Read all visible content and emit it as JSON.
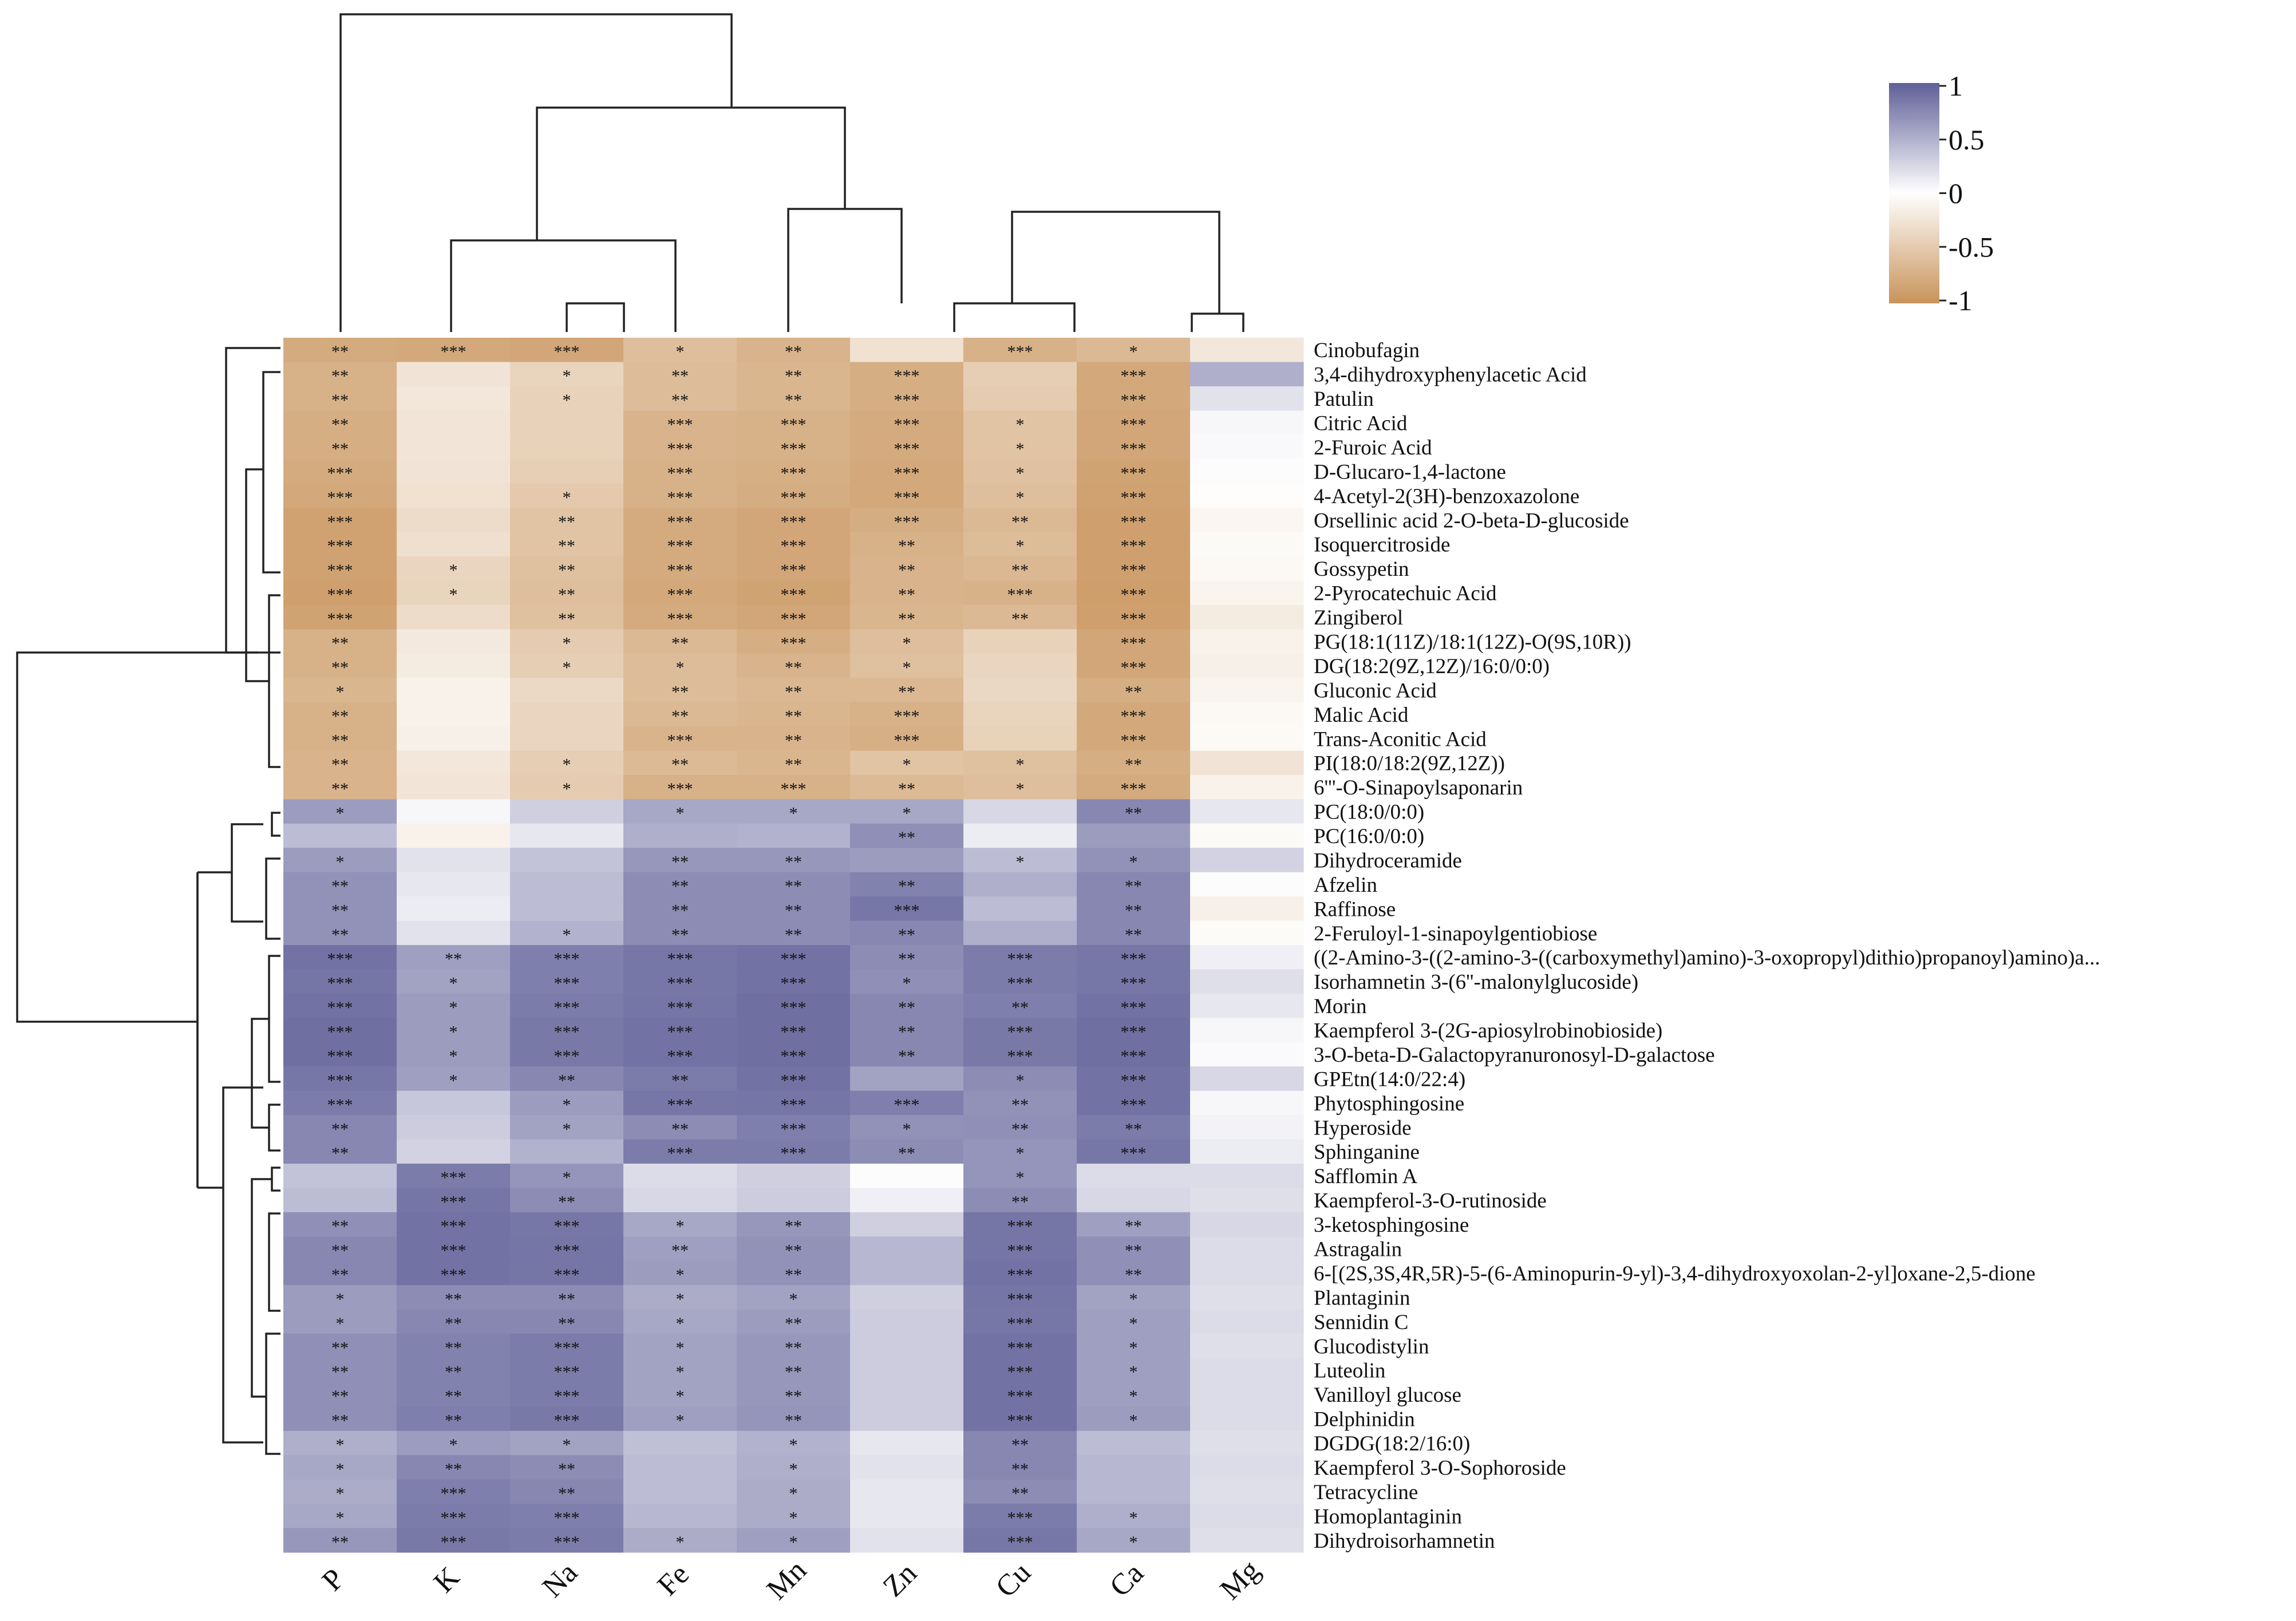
{
  "chart_data": {
    "type": "heatmap",
    "title": "",
    "columns": [
      "P",
      "K",
      "Na",
      "Fe",
      "Mn",
      "Zn",
      "Cu",
      "Ca",
      "Mg"
    ],
    "rows": [
      "Cinobufagin",
      "3,4-dihydroxyphenylacetic Acid",
      "Patulin",
      "Citric Acid",
      "2-Furoic Acid",
      "D-Glucaro-1,4-lactone",
      "4-Acetyl-2(3H)-benzoxazolone",
      "Orsellinic acid 2-O-beta-D-glucoside",
      "Isoquercitroside",
      "Gossypetin",
      "2-Pyrocatechuic Acid",
      "Zingiberol",
      "PG(18:1(11Z)/18:1(12Z)-O(9S,10R))",
      "DG(18:2(9Z,12Z)/16:0/0:0)",
      "Gluconic Acid",
      "Malic Acid",
      "Trans-Aconitic Acid",
      "PI(18:0/18:2(9Z,12Z))",
      "6'''-O-Sinapoylsaponarin",
      "PC(18:0/0:0)",
      "PC(16:0/0:0)",
      "Dihydroceramide",
      "Afzelin",
      "Raffinose",
      "2-Feruloyl-1-sinapoylgentiobiose",
      "((2-Amino-3-((2-amino-3-((carboxymethyl)amino)-3-oxopropyl)dithio)propanoyl)amino)a...",
      "Isorhamnetin 3-(6''-malonylglucoside)",
      "Morin",
      "Kaempferol 3-(2G-apiosylrobinobioside)",
      "3-O-beta-D-Galactopyranuronosyl-D-galactose",
      "GPEtn(14:0/22:4)",
      "Phytosphingosine",
      "Hyperoside",
      "Sphinganine",
      "Safflomin A",
      "Kaempferol-3-O-rutinoside",
      "3-ketosphingosine",
      "Astragalin",
      "6-[(2S,3S,4R,5R)-5-(6-Aminopurin-9-yl)-3,4-dihydroxyoxolan-2-yl]oxane-2,5-dione",
      "Plantaginin",
      "Sennidin C",
      "Glucodistylin",
      "Luteolin",
      "Vanilloyl glucose",
      "Delphinidin",
      "DGDG(18:2/16:0)",
      "Kaempferol 3-O-Sophoroside",
      "Tetracycline",
      "Homoplantaginin",
      "Dihydroisorhamnetin"
    ],
    "values": [
      [
        -0.78,
        -0.8,
        -0.82,
        -0.6,
        -0.7,
        -0.28,
        -0.72,
        -0.65,
        -0.22
      ],
      [
        -0.72,
        -0.25,
        -0.4,
        -0.62,
        -0.68,
        -0.75,
        -0.45,
        -0.8,
        0.5
      ],
      [
        -0.72,
        -0.22,
        -0.42,
        -0.62,
        -0.68,
        -0.75,
        -0.48,
        -0.8,
        0.18
      ],
      [
        -0.75,
        -0.24,
        -0.42,
        -0.7,
        -0.72,
        -0.78,
        -0.55,
        -0.82,
        0.05
      ],
      [
        -0.75,
        -0.24,
        -0.42,
        -0.7,
        -0.72,
        -0.78,
        -0.55,
        -0.82,
        0.04
      ],
      [
        -0.78,
        -0.25,
        -0.44,
        -0.72,
        -0.74,
        -0.8,
        -0.57,
        -0.85,
        0.02
      ],
      [
        -0.8,
        -0.28,
        -0.5,
        -0.72,
        -0.76,
        -0.8,
        -0.6,
        -0.86,
        -0.02
      ],
      [
        -0.86,
        -0.32,
        -0.55,
        -0.78,
        -0.82,
        -0.76,
        -0.65,
        -0.88,
        -0.08
      ],
      [
        -0.86,
        -0.3,
        -0.55,
        -0.78,
        -0.82,
        -0.72,
        -0.62,
        -0.88,
        -0.05
      ],
      [
        -0.86,
        -0.38,
        -0.58,
        -0.78,
        -0.82,
        -0.7,
        -0.66,
        -0.88,
        -0.06
      ],
      [
        -0.88,
        -0.4,
        -0.6,
        -0.8,
        -0.85,
        -0.7,
        -0.72,
        -0.9,
        -0.1
      ],
      [
        -0.85,
        -0.32,
        -0.58,
        -0.78,
        -0.82,
        -0.68,
        -0.65,
        -0.88,
        -0.18
      ],
      [
        -0.72,
        -0.2,
        -0.48,
        -0.65,
        -0.75,
        -0.6,
        -0.42,
        -0.82,
        -0.12
      ],
      [
        -0.72,
        -0.18,
        -0.45,
        -0.62,
        -0.7,
        -0.58,
        -0.38,
        -0.82,
        -0.14
      ],
      [
        -0.68,
        -0.12,
        -0.35,
        -0.62,
        -0.66,
        -0.66,
        -0.36,
        -0.75,
        -0.1
      ],
      [
        -0.72,
        -0.12,
        -0.38,
        -0.65,
        -0.68,
        -0.72,
        -0.4,
        -0.8,
        -0.06
      ],
      [
        -0.72,
        -0.14,
        -0.38,
        -0.7,
        -0.7,
        -0.74,
        -0.42,
        -0.8,
        -0.05
      ],
      [
        -0.7,
        -0.22,
        -0.45,
        -0.64,
        -0.68,
        -0.55,
        -0.58,
        -0.75,
        -0.25
      ],
      [
        -0.7,
        -0.24,
        -0.48,
        -0.72,
        -0.72,
        -0.64,
        -0.6,
        -0.78,
        -0.12
      ],
      [
        0.62,
        0.05,
        0.3,
        0.55,
        0.55,
        0.55,
        0.25,
        0.75,
        0.15
      ],
      [
        0.42,
        -0.12,
        0.15,
        0.5,
        0.48,
        0.7,
        0.12,
        0.62,
        -0.05
      ],
      [
        0.62,
        0.18,
        0.38,
        0.65,
        0.65,
        0.62,
        0.42,
        0.68,
        0.28
      ],
      [
        0.68,
        0.15,
        0.42,
        0.72,
        0.72,
        0.78,
        0.5,
        0.75,
        0.02
      ],
      [
        0.68,
        0.12,
        0.42,
        0.72,
        0.72,
        0.85,
        0.42,
        0.75,
        -0.14
      ],
      [
        0.68,
        0.18,
        0.48,
        0.72,
        0.72,
        0.75,
        0.5,
        0.75,
        -0.04
      ],
      [
        0.88,
        0.6,
        0.8,
        0.85,
        0.88,
        0.72,
        0.82,
        0.85,
        0.1
      ],
      [
        0.86,
        0.58,
        0.8,
        0.85,
        0.88,
        0.7,
        0.82,
        0.85,
        0.2
      ],
      [
        0.88,
        0.62,
        0.82,
        0.86,
        0.9,
        0.75,
        0.8,
        0.88,
        0.15
      ],
      [
        0.9,
        0.62,
        0.84,
        0.88,
        0.9,
        0.75,
        0.84,
        0.9,
        0.05
      ],
      [
        0.9,
        0.62,
        0.84,
        0.88,
        0.9,
        0.75,
        0.84,
        0.9,
        0.03
      ],
      [
        0.85,
        0.6,
        0.75,
        0.82,
        0.88,
        0.58,
        0.72,
        0.88,
        0.25
      ],
      [
        0.82,
        0.35,
        0.62,
        0.85,
        0.86,
        0.8,
        0.68,
        0.88,
        0.05
      ],
      [
        0.75,
        0.32,
        0.58,
        0.72,
        0.8,
        0.68,
        0.7,
        0.82,
        0.08
      ],
      [
        0.75,
        0.28,
        0.48,
        0.82,
        0.82,
        0.72,
        0.66,
        0.85,
        0.12
      ],
      [
        0.38,
        0.82,
        0.66,
        0.22,
        0.3,
        0.02,
        0.66,
        0.22,
        0.22
      ],
      [
        0.42,
        0.86,
        0.72,
        0.25,
        0.32,
        0.1,
        0.72,
        0.25,
        0.2
      ],
      [
        0.7,
        0.88,
        0.85,
        0.55,
        0.65,
        0.3,
        0.86,
        0.6,
        0.25
      ],
      [
        0.75,
        0.88,
        0.86,
        0.6,
        0.68,
        0.45,
        0.86,
        0.7,
        0.22
      ],
      [
        0.75,
        0.88,
        0.86,
        0.62,
        0.68,
        0.45,
        0.88,
        0.7,
        0.22
      ],
      [
        0.62,
        0.72,
        0.72,
        0.52,
        0.58,
        0.3,
        0.86,
        0.58,
        0.2
      ],
      [
        0.62,
        0.75,
        0.75,
        0.55,
        0.62,
        0.32,
        0.85,
        0.6,
        0.22
      ],
      [
        0.7,
        0.78,
        0.82,
        0.58,
        0.65,
        0.32,
        0.88,
        0.6,
        0.2
      ],
      [
        0.7,
        0.78,
        0.82,
        0.58,
        0.65,
        0.32,
        0.88,
        0.6,
        0.22
      ],
      [
        0.7,
        0.78,
        0.82,
        0.58,
        0.65,
        0.32,
        0.88,
        0.6,
        0.22
      ],
      [
        0.7,
        0.8,
        0.84,
        0.6,
        0.66,
        0.32,
        0.88,
        0.62,
        0.22
      ],
      [
        0.5,
        0.62,
        0.58,
        0.4,
        0.48,
        0.15,
        0.75,
        0.42,
        0.2
      ],
      [
        0.55,
        0.75,
        0.72,
        0.42,
        0.5,
        0.18,
        0.75,
        0.45,
        0.22
      ],
      [
        0.52,
        0.8,
        0.75,
        0.42,
        0.52,
        0.15,
        0.72,
        0.45,
        0.2
      ],
      [
        0.55,
        0.82,
        0.8,
        0.45,
        0.52,
        0.15,
        0.82,
        0.5,
        0.22
      ],
      [
        0.65,
        0.84,
        0.82,
        0.52,
        0.6,
        0.18,
        0.85,
        0.55,
        0.2
      ]
    ],
    "significance": [
      [
        "**",
        "***",
        "***",
        "*",
        "**",
        "",
        "***",
        "*",
        ""
      ],
      [
        "**",
        "",
        "*",
        "**",
        "**",
        "***",
        "",
        "***",
        ""
      ],
      [
        "**",
        "",
        "*",
        "**",
        "**",
        "***",
        "",
        "***",
        ""
      ],
      [
        "**",
        "",
        "",
        "***",
        "***",
        "***",
        "*",
        "***",
        ""
      ],
      [
        "**",
        "",
        "",
        "***",
        "***",
        "***",
        "*",
        "***",
        ""
      ],
      [
        "***",
        "",
        "",
        "***",
        "***",
        "***",
        "*",
        "***",
        ""
      ],
      [
        "***",
        "",
        "*",
        "***",
        "***",
        "***",
        "*",
        "***",
        ""
      ],
      [
        "***",
        "",
        "**",
        "***",
        "***",
        "***",
        "**",
        "***",
        ""
      ],
      [
        "***",
        "",
        "**",
        "***",
        "***",
        "**",
        "*",
        "***",
        ""
      ],
      [
        "***",
        "*",
        "**",
        "***",
        "***",
        "**",
        "**",
        "***",
        ""
      ],
      [
        "***",
        "*",
        "**",
        "***",
        "***",
        "**",
        "***",
        "***",
        ""
      ],
      [
        "***",
        "",
        "**",
        "***",
        "***",
        "**",
        "**",
        "***",
        ""
      ],
      [
        "**",
        "",
        "*",
        "**",
        "***",
        "*",
        "",
        "***",
        ""
      ],
      [
        "**",
        "",
        "*",
        "*",
        "**",
        "*",
        "",
        "***",
        ""
      ],
      [
        "*",
        "",
        "",
        "**",
        "**",
        "**",
        "",
        "**",
        ""
      ],
      [
        "**",
        "",
        "",
        "**",
        "**",
        "***",
        "",
        "***",
        ""
      ],
      [
        "**",
        "",
        "",
        "***",
        "**",
        "***",
        "",
        "***",
        ""
      ],
      [
        "**",
        "",
        "*",
        "**",
        "**",
        "*",
        "*",
        "**",
        ""
      ],
      [
        "**",
        "",
        "*",
        "***",
        "***",
        "**",
        "*",
        "***",
        ""
      ],
      [
        "*",
        "",
        "",
        "*",
        "*",
        "*",
        "",
        "**",
        ""
      ],
      [
        "",
        "",
        "",
        "",
        "",
        "**",
        "",
        "",
        ""
      ],
      [
        "*",
        "",
        "",
        "**",
        "**",
        "",
        "*",
        "*",
        ""
      ],
      [
        "**",
        "",
        "",
        "**",
        "**",
        "**",
        "",
        "**",
        ""
      ],
      [
        "**",
        "",
        "",
        "**",
        "**",
        "***",
        "",
        "**",
        ""
      ],
      [
        "**",
        "",
        "*",
        "**",
        "**",
        "**",
        "",
        "**",
        ""
      ],
      [
        "***",
        "**",
        "***",
        "***",
        "***",
        "**",
        "***",
        "***",
        ""
      ],
      [
        "***",
        "*",
        "***",
        "***",
        "***",
        "*",
        "***",
        "***",
        ""
      ],
      [
        "***",
        "*",
        "***",
        "***",
        "***",
        "**",
        "**",
        "***",
        ""
      ],
      [
        "***",
        "*",
        "***",
        "***",
        "***",
        "**",
        "***",
        "***",
        ""
      ],
      [
        "***",
        "*",
        "***",
        "***",
        "***",
        "**",
        "***",
        "***",
        ""
      ],
      [
        "***",
        "*",
        "**",
        "**",
        "***",
        "",
        "*",
        "***",
        ""
      ],
      [
        "***",
        "",
        "*",
        "***",
        "***",
        "***",
        "**",
        "***",
        ""
      ],
      [
        "**",
        "",
        "*",
        "**",
        "***",
        "*",
        "**",
        "**",
        ""
      ],
      [
        "**",
        "",
        "",
        "***",
        "***",
        "**",
        "*",
        "***",
        ""
      ],
      [
        "",
        "***",
        "*",
        "",
        "",
        "",
        "*",
        "",
        ""
      ],
      [
        "",
        "***",
        "**",
        "",
        "",
        "",
        "**",
        "",
        ""
      ],
      [
        "**",
        "***",
        "***",
        "*",
        "**",
        "",
        "***",
        "**",
        ""
      ],
      [
        "**",
        "***",
        "***",
        "**",
        "**",
        "",
        "***",
        "**",
        ""
      ],
      [
        "**",
        "***",
        "***",
        "*",
        "**",
        "",
        "***",
        "**",
        ""
      ],
      [
        "*",
        "**",
        "**",
        "*",
        "*",
        "",
        "***",
        "*",
        ""
      ],
      [
        "*",
        "**",
        "**",
        "*",
        "**",
        "",
        "***",
        "*",
        ""
      ],
      [
        "**",
        "**",
        "***",
        "*",
        "**",
        "",
        "***",
        "*",
        ""
      ],
      [
        "**",
        "**",
        "***",
        "*",
        "**",
        "",
        "***",
        "*",
        ""
      ],
      [
        "**",
        "**",
        "***",
        "*",
        "**",
        "",
        "***",
        "*",
        ""
      ],
      [
        "**",
        "**",
        "***",
        "*",
        "**",
        "",
        "***",
        "*",
        ""
      ],
      [
        "*",
        "*",
        "*",
        "",
        "*",
        "",
        "**",
        "",
        ""
      ],
      [
        "*",
        "**",
        "**",
        "",
        "*",
        "",
        "**",
        "",
        ""
      ],
      [
        "*",
        "***",
        "**",
        "",
        "*",
        "",
        "**",
        "",
        ""
      ],
      [
        "*",
        "***",
        "***",
        "",
        "*",
        "",
        "***",
        "*",
        ""
      ],
      [
        "**",
        "***",
        "***",
        "*",
        "*",
        "",
        "***",
        "*",
        ""
      ]
    ],
    "color_scale": {
      "min": -1,
      "max": 1,
      "low_color": "#c8935a",
      "mid_color": "#ffffff",
      "high_color": "#5f5f98"
    },
    "legend": {
      "ticks": [
        "1",
        "0.5",
        "0",
        "-0.5",
        "-1"
      ],
      "position": "top-right"
    }
  }
}
